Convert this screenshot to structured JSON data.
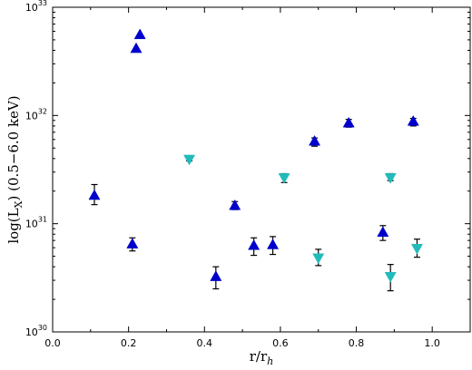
{
  "chart_data": {
    "type": "scatter",
    "xlabel": "r/r",
    "xlabel_sub": "h",
    "ylabel": "log(L",
    "ylabel_sub": "X",
    "ylabel_suffix": ") (0.5−6.0 keV)",
    "xlim": [
      0.0,
      1.1
    ],
    "ylim": [
      1e+30,
      1e+33
    ],
    "yscale": "log",
    "grid": false,
    "x_ticks": [
      0.0,
      0.2,
      0.4,
      0.6,
      0.8,
      1.0
    ],
    "x_tick_labels": [
      "0.0",
      "0.2",
      "0.4",
      "0.6",
      "0.8",
      "1.0"
    ],
    "y_ticks": [
      1e+30,
      1e+31,
      1e+32,
      1e+33
    ],
    "y_tick_labels": [
      {
        "base": "10",
        "exp": "30"
      },
      {
        "base": "10",
        "exp": "31"
      },
      {
        "base": "10",
        "exp": "32"
      },
      {
        "base": "10",
        "exp": "33"
      }
    ],
    "series": [
      {
        "marker": "triangle-up",
        "color": "#0000cc",
        "points": [
          {
            "x": 0.11,
            "y": 1.8e+31,
            "err_lo": 1.5e+31,
            "err_hi": 2.3e+31
          },
          {
            "x": 0.21,
            "y": 6.4e+30,
            "err_lo": 5.6e+30,
            "err_hi": 7.4e+30
          },
          {
            "x": 0.22,
            "y": 4.1e+32
          },
          {
            "x": 0.23,
            "y": 5.5e+32
          },
          {
            "x": 0.43,
            "y": 3.2e+30,
            "err_lo": 2.5e+30,
            "err_hi": 4e+30
          },
          {
            "x": 0.48,
            "y": 1.45e+31,
            "err_lo": 1.35e+31,
            "err_hi": 1.6e+31
          },
          {
            "x": 0.53,
            "y": 6.2e+30,
            "err_lo": 5.1e+30,
            "err_hi": 7.4e+30
          },
          {
            "x": 0.58,
            "y": 6.3e+30,
            "err_lo": 5.2e+30,
            "err_hi": 7.6e+30
          },
          {
            "x": 0.69,
            "y": 5.7e+31,
            "err_lo": 5.2e+31,
            "err_hi": 6.2e+31
          },
          {
            "x": 0.78,
            "y": 8.4e+31,
            "err_lo": 7.8e+31,
            "err_hi": 9.2e+31
          },
          {
            "x": 0.87,
            "y": 8.2e+30,
            "err_lo": 7e+30,
            "err_hi": 9.6e+30
          },
          {
            "x": 0.95,
            "y": 8.7e+31,
            "err_lo": 8e+31,
            "err_hi": 9.4e+31
          }
        ]
      },
      {
        "marker": "triangle-down",
        "color": "#22bbbb",
        "points": [
          {
            "x": 0.36,
            "y": 4e+31,
            "err_lo": 3.8e+31,
            "err_hi": 4.2e+31
          },
          {
            "x": 0.61,
            "y": 2.7e+31,
            "err_lo": 2.4e+31,
            "err_hi": 2.9e+31
          },
          {
            "x": 0.7,
            "y": 4.9e+30,
            "err_lo": 4.1e+30,
            "err_hi": 5.8e+30
          },
          {
            "x": 0.89,
            "y": 3.3e+30,
            "err_lo": 2.4e+30,
            "err_hi": 4.2e+30
          },
          {
            "x": 0.89,
            "y": 2.7e+31,
            "err_lo": 2.5e+31,
            "err_hi": 2.9e+31
          },
          {
            "x": 0.96,
            "y": 6e+30,
            "err_lo": 4.9e+30,
            "err_hi": 7.2e+30
          }
        ]
      }
    ]
  }
}
